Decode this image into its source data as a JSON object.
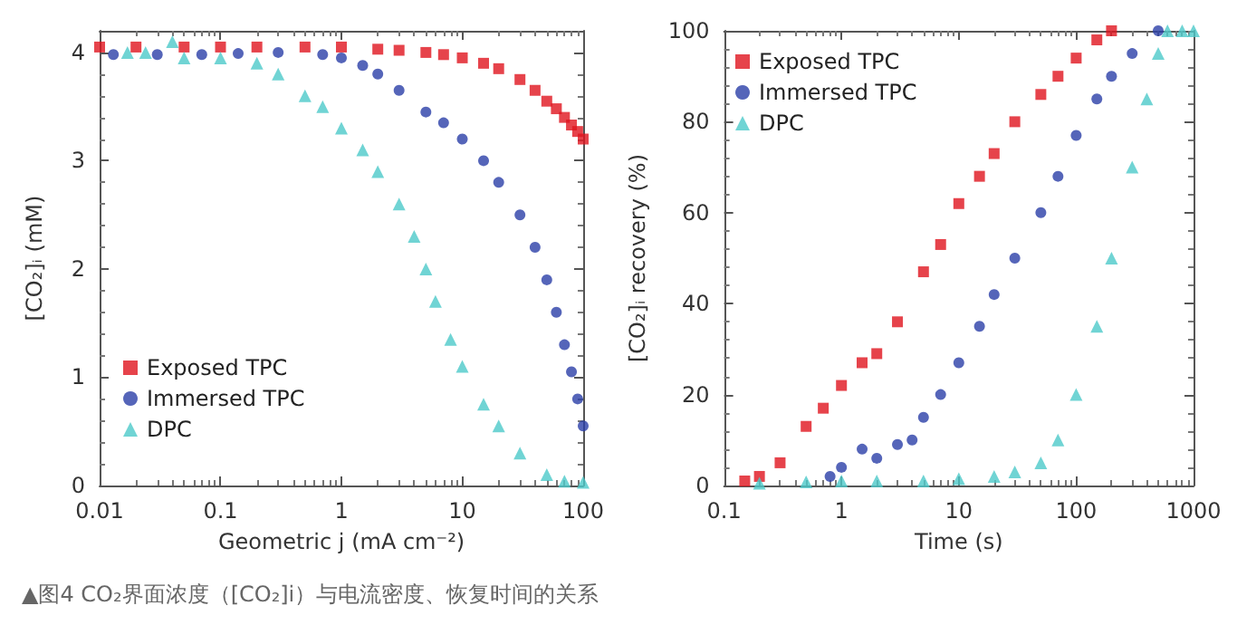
{
  "chart_data": [
    {
      "type": "scatter",
      "xlabel": "Geometric j (mA cm⁻²)",
      "ylabel": "[CO₂]ᵢ (mM)",
      "log": "x",
      "xlim": [
        0.01,
        100
      ],
      "xticks": [
        0.01,
        0.1,
        1,
        10,
        100
      ],
      "ylim": [
        0,
        4.2
      ],
      "yticks": [
        0,
        1,
        2,
        3,
        4
      ],
      "grid": false,
      "legend": "bottom left",
      "annotations": [
        "▲图4  CO₂界面浓度（[CO₂]i）与电流密度、恢复时间的关系"
      ],
      "series": [
        {
          "name": "Exposed TPC",
          "color": "#e0141e",
          "marker": "square",
          "x": [
            0.01,
            0.02,
            0.05,
            0.1,
            0.2,
            0.5,
            1,
            2,
            3,
            5,
            7,
            10,
            15,
            20,
            30,
            40,
            50,
            60,
            70,
            80,
            90,
            100
          ],
          "values": [
            4.05,
            4.05,
            4.05,
            4.05,
            4.05,
            4.05,
            4.05,
            4.03,
            4.02,
            4.0,
            3.98,
            3.95,
            3.9,
            3.85,
            3.75,
            3.65,
            3.55,
            3.48,
            3.4,
            3.33,
            3.27,
            3.2
          ]
        },
        {
          "name": "Immersed TPC",
          "color": "#2b3fa8",
          "marker": "circle",
          "x": [
            0.013,
            0.03,
            0.07,
            0.14,
            0.3,
            0.7,
            1,
            1.5,
            2,
            3,
            5,
            7,
            10,
            15,
            20,
            30,
            40,
            50,
            60,
            70,
            80,
            90,
            100
          ],
          "values": [
            3.98,
            3.98,
            3.98,
            3.99,
            4.0,
            3.98,
            3.95,
            3.88,
            3.8,
            3.65,
            3.45,
            3.35,
            3.2,
            3.0,
            2.8,
            2.5,
            2.2,
            1.9,
            1.6,
            1.3,
            1.05,
            0.8,
            0.55
          ]
        },
        {
          "name": "DPC",
          "color": "#4cc9c9",
          "marker": "triangle",
          "x": [
            0.017,
            0.024,
            0.04,
            0.05,
            0.1,
            0.2,
            0.3,
            0.5,
            0.7,
            1,
            1.5,
            2,
            3,
            4,
            5,
            6,
            8,
            10,
            15,
            20,
            30,
            50,
            70,
            100
          ],
          "values": [
            4.0,
            4.0,
            4.1,
            3.95,
            3.95,
            3.9,
            3.8,
            3.6,
            3.5,
            3.3,
            3.1,
            2.9,
            2.6,
            2.3,
            2.0,
            1.7,
            1.35,
            1.1,
            0.75,
            0.55,
            0.3,
            0.1,
            0.04,
            0.03
          ]
        }
      ]
    },
    {
      "type": "scatter",
      "xlabel": "Time (s)",
      "ylabel": "[CO₂]ᵢ recovery (%)",
      "log": "x",
      "xlim": [
        0.1,
        1000
      ],
      "xticks": [
        0.1,
        1,
        10,
        100,
        1000
      ],
      "ylim": [
        0,
        100
      ],
      "yticks": [
        0,
        20,
        40,
        60,
        80,
        100
      ],
      "grid": false,
      "legend": "top left",
      "series": [
        {
          "name": "Exposed TPC",
          "color": "#e0141e",
          "marker": "square",
          "x": [
            0.15,
            0.2,
            0.3,
            0.5,
            0.7,
            1,
            1.5,
            2,
            3,
            5,
            7,
            10,
            15,
            20,
            30,
            50,
            70,
            100,
            150,
            200
          ],
          "values": [
            1,
            2,
            5,
            13,
            17,
            22,
            27,
            29,
            36,
            47,
            53,
            62,
            68,
            73,
            80,
            86,
            90,
            94,
            98,
            100
          ]
        },
        {
          "name": "Immersed TPC",
          "color": "#2b3fa8",
          "marker": "circle",
          "x": [
            0.8,
            1,
            1.5,
            2,
            3,
            4,
            5,
            7,
            10,
            15,
            20,
            30,
            50,
            70,
            100,
            150,
            200,
            300,
            500
          ],
          "values": [
            2,
            4,
            8,
            6,
            9,
            10,
            15,
            20,
            27,
            35,
            42,
            50,
            60,
            68,
            77,
            85,
            90,
            95,
            100
          ]
        },
        {
          "name": "DPC",
          "color": "#4cc9c9",
          "marker": "triangle",
          "x": [
            0.2,
            0.5,
            1,
            2,
            5,
            10,
            20,
            30,
            50,
            70,
            100,
            150,
            200,
            300,
            400,
            500,
            600,
            800,
            1000
          ],
          "values": [
            0.5,
            0.8,
            1,
            1,
            1,
            1.5,
            2,
            3,
            5,
            10,
            20,
            35,
            50,
            70,
            85,
            95,
            100,
            100,
            100
          ]
        }
      ]
    }
  ]
}
